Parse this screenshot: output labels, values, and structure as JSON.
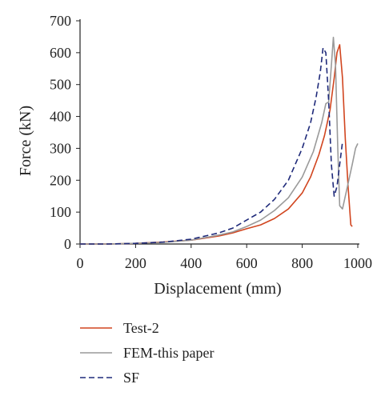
{
  "chart_data": {
    "type": "line",
    "title": "",
    "xlabel": "Displacement (mm)",
    "ylabel": "Force (kN)",
    "xlim": [
      0,
      1000
    ],
    "ylim": [
      0,
      700
    ],
    "xticks": [
      0,
      200,
      400,
      600,
      800,
      1000
    ],
    "yticks": [
      0,
      100,
      200,
      300,
      400,
      500,
      600,
      700
    ],
    "grid": false,
    "legend_position": "bottom",
    "series": [
      {
        "name": "Test-2",
        "color": "#d1451f",
        "dash": "solid",
        "x": [
          0,
          100,
          200,
          300,
          400,
          500,
          550,
          600,
          650,
          700,
          750,
          800,
          830,
          860,
          880,
          900,
          915,
          925,
          935,
          945,
          955,
          965,
          975,
          980
        ],
        "y": [
          0,
          0,
          2,
          6,
          12,
          25,
          35,
          48,
          60,
          80,
          110,
          160,
          210,
          280,
          340,
          420,
          520,
          600,
          625,
          520,
          330,
          180,
          60,
          55
        ]
      },
      {
        "name": "FEM-this paper",
        "color": "#9a9a9a",
        "dash": "solid",
        "x": [
          0,
          100,
          200,
          300,
          400,
          500,
          550,
          600,
          650,
          700,
          750,
          800,
          840,
          870,
          885,
          895,
          905,
          912,
          920,
          928,
          935,
          945,
          955,
          965,
          980,
          992,
          1000
        ],
        "y": [
          0,
          0,
          2,
          5,
          12,
          28,
          38,
          55,
          75,
          105,
          145,
          210,
          290,
          380,
          440,
          445,
          560,
          648,
          560,
          300,
          120,
          110,
          150,
          190,
          250,
          300,
          315
        ],
        "secondary_peak": 318
      },
      {
        "name": "SF",
        "color": "#1f2a7a",
        "dash": "dashed",
        "x": [
          0,
          100,
          200,
          300,
          400,
          500,
          550,
          600,
          650,
          700,
          750,
          800,
          830,
          850,
          865,
          875,
          885,
          895,
          905,
          915,
          925,
          935,
          945
        ],
        "y": [
          0,
          0,
          2,
          6,
          15,
          35,
          50,
          75,
          100,
          140,
          200,
          300,
          380,
          460,
          540,
          615,
          600,
          450,
          250,
          150,
          180,
          250,
          320
        ]
      }
    ]
  }
}
